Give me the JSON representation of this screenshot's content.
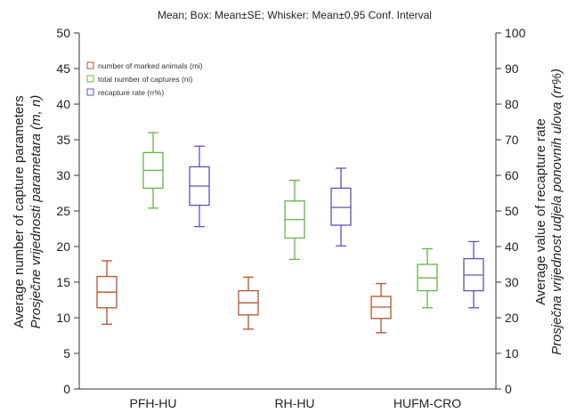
{
  "chart_data": {
    "type": "box",
    "title": "Mean; Box: Mean±SE; Whisker: Mean±0,95 Conf. Interval",
    "ylabel_left": [
      "Average number of capture parameters",
      "Prosječne vrijednosti parametara (m, n)"
    ],
    "ylabel_right": [
      "Average value of recapture rate",
      "Prosječna vrijednost udjela ponovnih ulova (rr%)"
    ],
    "left_axis": {
      "range": [
        0,
        50
      ],
      "ticks": [
        "0",
        "5",
        "10",
        "15",
        "20",
        "25",
        "30",
        "35",
        "40",
        "45",
        "50"
      ]
    },
    "right_axis": {
      "range": [
        0,
        100
      ],
      "ticks": [
        "0",
        "10",
        "20",
        "30",
        "40",
        "50",
        "60",
        "70",
        "80",
        "90",
        "100"
      ]
    },
    "categories": [
      "PFH-HU",
      "RH-HU",
      "HUFM-CRO"
    ],
    "legend": [
      {
        "label": "number of marked animals (mi)",
        "color": "#b5532f"
      },
      {
        "label": "total number of captures (ni)",
        "color": "#6ab04c"
      },
      {
        "label": "recapture rate (rr%)",
        "color": "#6a4fb0"
      }
    ],
    "series": [
      {
        "name": "number of marked animals (mi)",
        "axis": "left",
        "color": "#b5532f",
        "values": [
          {
            "mean": 13.6,
            "box": [
              11.4,
              15.8
            ],
            "whisker": [
              9.1,
              18.0
            ]
          },
          {
            "mean": 12.1,
            "box": [
              10.4,
              13.8
            ],
            "whisker": [
              8.4,
              15.7
            ]
          },
          {
            "mean": 11.5,
            "box": [
              9.9,
              13.0
            ],
            "whisker": [
              7.9,
              14.8
            ]
          }
        ]
      },
      {
        "name": "total number of captures (ni)",
        "axis": "left",
        "color": "#6ab04c",
        "values": [
          {
            "mean": 30.7,
            "box": [
              28.2,
              33.2
            ],
            "whisker": [
              25.4,
              36.0
            ]
          },
          {
            "mean": 23.8,
            "box": [
              21.2,
              26.4
            ],
            "whisker": [
              18.2,
              29.3
            ]
          },
          {
            "mean": 15.6,
            "box": [
              13.8,
              17.5
            ],
            "whisker": [
              11.4,
              19.7
            ]
          }
        ]
      },
      {
        "name": "recapture rate (rr%)",
        "axis": "right",
        "color": "#6a4fb0",
        "values": [
          {
            "mean": 57.0,
            "box": [
              51.6,
              62.4
            ],
            "whisker": [
              45.6,
              68.2
            ]
          },
          {
            "mean": 51.0,
            "box": [
              46.0,
              56.4
            ],
            "whisker": [
              40.2,
              62.0
            ]
          },
          {
            "mean": 32.0,
            "box": [
              27.6,
              36.6
            ],
            "whisker": [
              22.8,
              41.4
            ]
          }
        ]
      }
    ]
  }
}
